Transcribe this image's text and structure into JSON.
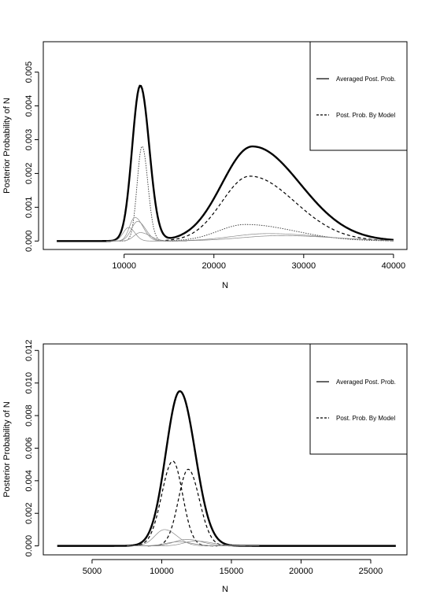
{
  "chart_data": [
    {
      "type": "line",
      "xlabel": "N",
      "ylabel": "Posterior Probability of N",
      "xticks": [
        10000,
        20000,
        30000,
        40000
      ],
      "yticks": [
        0.0,
        0.001,
        0.002,
        0.003,
        0.004,
        0.005
      ],
      "ytick_labels": [
        "0.000",
        "0.001",
        "0.002",
        "0.003",
        "0.004",
        "0.005"
      ],
      "xlim": [
        1000,
        41500
      ],
      "ylim": [
        -0.00025,
        0.0059
      ],
      "grid": false,
      "legend_position": "top-right",
      "legend": [
        {
          "label": "Averaged Post. Prob.",
          "style": "solid"
        },
        {
          "label": "Post. Prob. By Model",
          "style": "dashed"
        }
      ],
      "series": [
        {
          "style": "thick",
          "components": [
            {
              "amp": 0.0046,
              "mu": 11800,
              "sl": 900,
              "sr": 1000
            },
            {
              "amp": 0.0028,
              "mu": 24300,
              "sl": 3400,
              "sr": 5300
            }
          ],
          "x_range": [
            2500,
            40000
          ]
        },
        {
          "style": "dashed",
          "components": [
            {
              "amp": 0.00192,
              "mu": 24000,
              "sl": 3100,
              "sr": 5000
            }
          ],
          "x_range": [
            14000,
            40000
          ]
        },
        {
          "style": "dotted",
          "components": [
            {
              "amp": 0.0028,
              "mu": 12000,
              "sl": 550,
              "sr": 650
            }
          ],
          "x_range": [
            9500,
            15500
          ]
        },
        {
          "style": "dotted",
          "components": [
            {
              "amp": 0.00049,
              "mu": 23500,
              "sl": 3000,
              "sr": 5500
            }
          ],
          "x_range": [
            15000,
            40000
          ]
        },
        {
          "style": "faint",
          "components": [
            {
              "amp": 0.0007,
              "mu": 11200,
              "sl": 600,
              "sr": 900
            }
          ],
          "x_range": [
            8500,
            16000
          ]
        },
        {
          "style": "faint",
          "components": [
            {
              "amp": 0.00058,
              "mu": 11500,
              "sl": 700,
              "sr": 900
            }
          ],
          "x_range": [
            8500,
            16000
          ]
        },
        {
          "style": "faint",
          "components": [
            {
              "amp": 0.0004,
              "mu": 10500,
              "sl": 600,
              "sr": 700
            }
          ],
          "x_range": [
            8000,
            15000
          ]
        },
        {
          "style": "faint",
          "components": [
            {
              "amp": 0.00025,
              "mu": 11800,
              "sl": 700,
              "sr": 1100
            }
          ],
          "x_range": [
            8500,
            17000
          ]
        },
        {
          "style": "faint",
          "components": [
            {
              "amp": 0.00022,
              "mu": 26000,
              "sl": 4000,
              "sr": 6000
            }
          ],
          "x_range": [
            15000,
            40000
          ]
        },
        {
          "style": "faint",
          "components": [
            {
              "amp": 0.00016,
              "mu": 27500,
              "sl": 4500,
              "sr": 6000
            }
          ],
          "x_range": [
            15000,
            40000
          ]
        }
      ]
    },
    {
      "type": "line",
      "xlabel": "N",
      "ylabel": "Posterior Probability of N",
      "xticks": [
        5000,
        10000,
        15000,
        20000,
        25000
      ],
      "yticks": [
        0.0,
        0.002,
        0.004,
        0.006,
        0.008,
        0.01,
        0.012
      ],
      "ytick_labels": [
        "0.000",
        "0.002",
        "0.004",
        "0.006",
        "0.008",
        "0.010",
        "0.012"
      ],
      "xlim": [
        1500,
        27600
      ],
      "ylim": [
        -0.00055,
        0.0124
      ],
      "grid": false,
      "legend_position": "top-right",
      "legend": [
        {
          "label": "Averaged Post. Prob.",
          "style": "solid"
        },
        {
          "label": "Post. Prob. By Model",
          "style": "dashed"
        }
      ],
      "series": [
        {
          "style": "thick",
          "components": [
            {
              "amp": 0.0095,
              "mu": 11300,
              "sl": 1000,
              "sr": 1100
            }
          ],
          "x_range": [
            2500,
            26800
          ]
        },
        {
          "style": "dashed",
          "components": [
            {
              "amp": 0.0052,
              "mu": 10800,
              "sl": 800,
              "sr": 700
            }
          ],
          "x_range": [
            8000,
            14000
          ]
        },
        {
          "style": "dashed",
          "components": [
            {
              "amp": 0.0047,
              "mu": 11900,
              "sl": 700,
              "sr": 800
            }
          ],
          "x_range": [
            9000,
            15500
          ]
        },
        {
          "style": "faint",
          "components": [
            {
              "amp": 0.001,
              "mu": 10200,
              "sl": 700,
              "sr": 900
            }
          ],
          "x_range": [
            7500,
            14500
          ]
        },
        {
          "style": "faint",
          "components": [
            {
              "amp": 0.0004,
              "mu": 11800,
              "sl": 900,
              "sr": 1100
            }
          ],
          "x_range": [
            8000,
            16000
          ]
        },
        {
          "style": "faint",
          "components": [
            {
              "amp": 0.0003,
              "mu": 12400,
              "sl": 800,
              "sr": 1200
            }
          ],
          "x_range": [
            8500,
            17000
          ]
        },
        {
          "style": "faint",
          "components": [
            {
              "amp": 0.00025,
              "mu": 11200,
              "sl": 900,
              "sr": 1000
            }
          ],
          "x_range": [
            8000,
            16000
          ]
        }
      ]
    }
  ]
}
